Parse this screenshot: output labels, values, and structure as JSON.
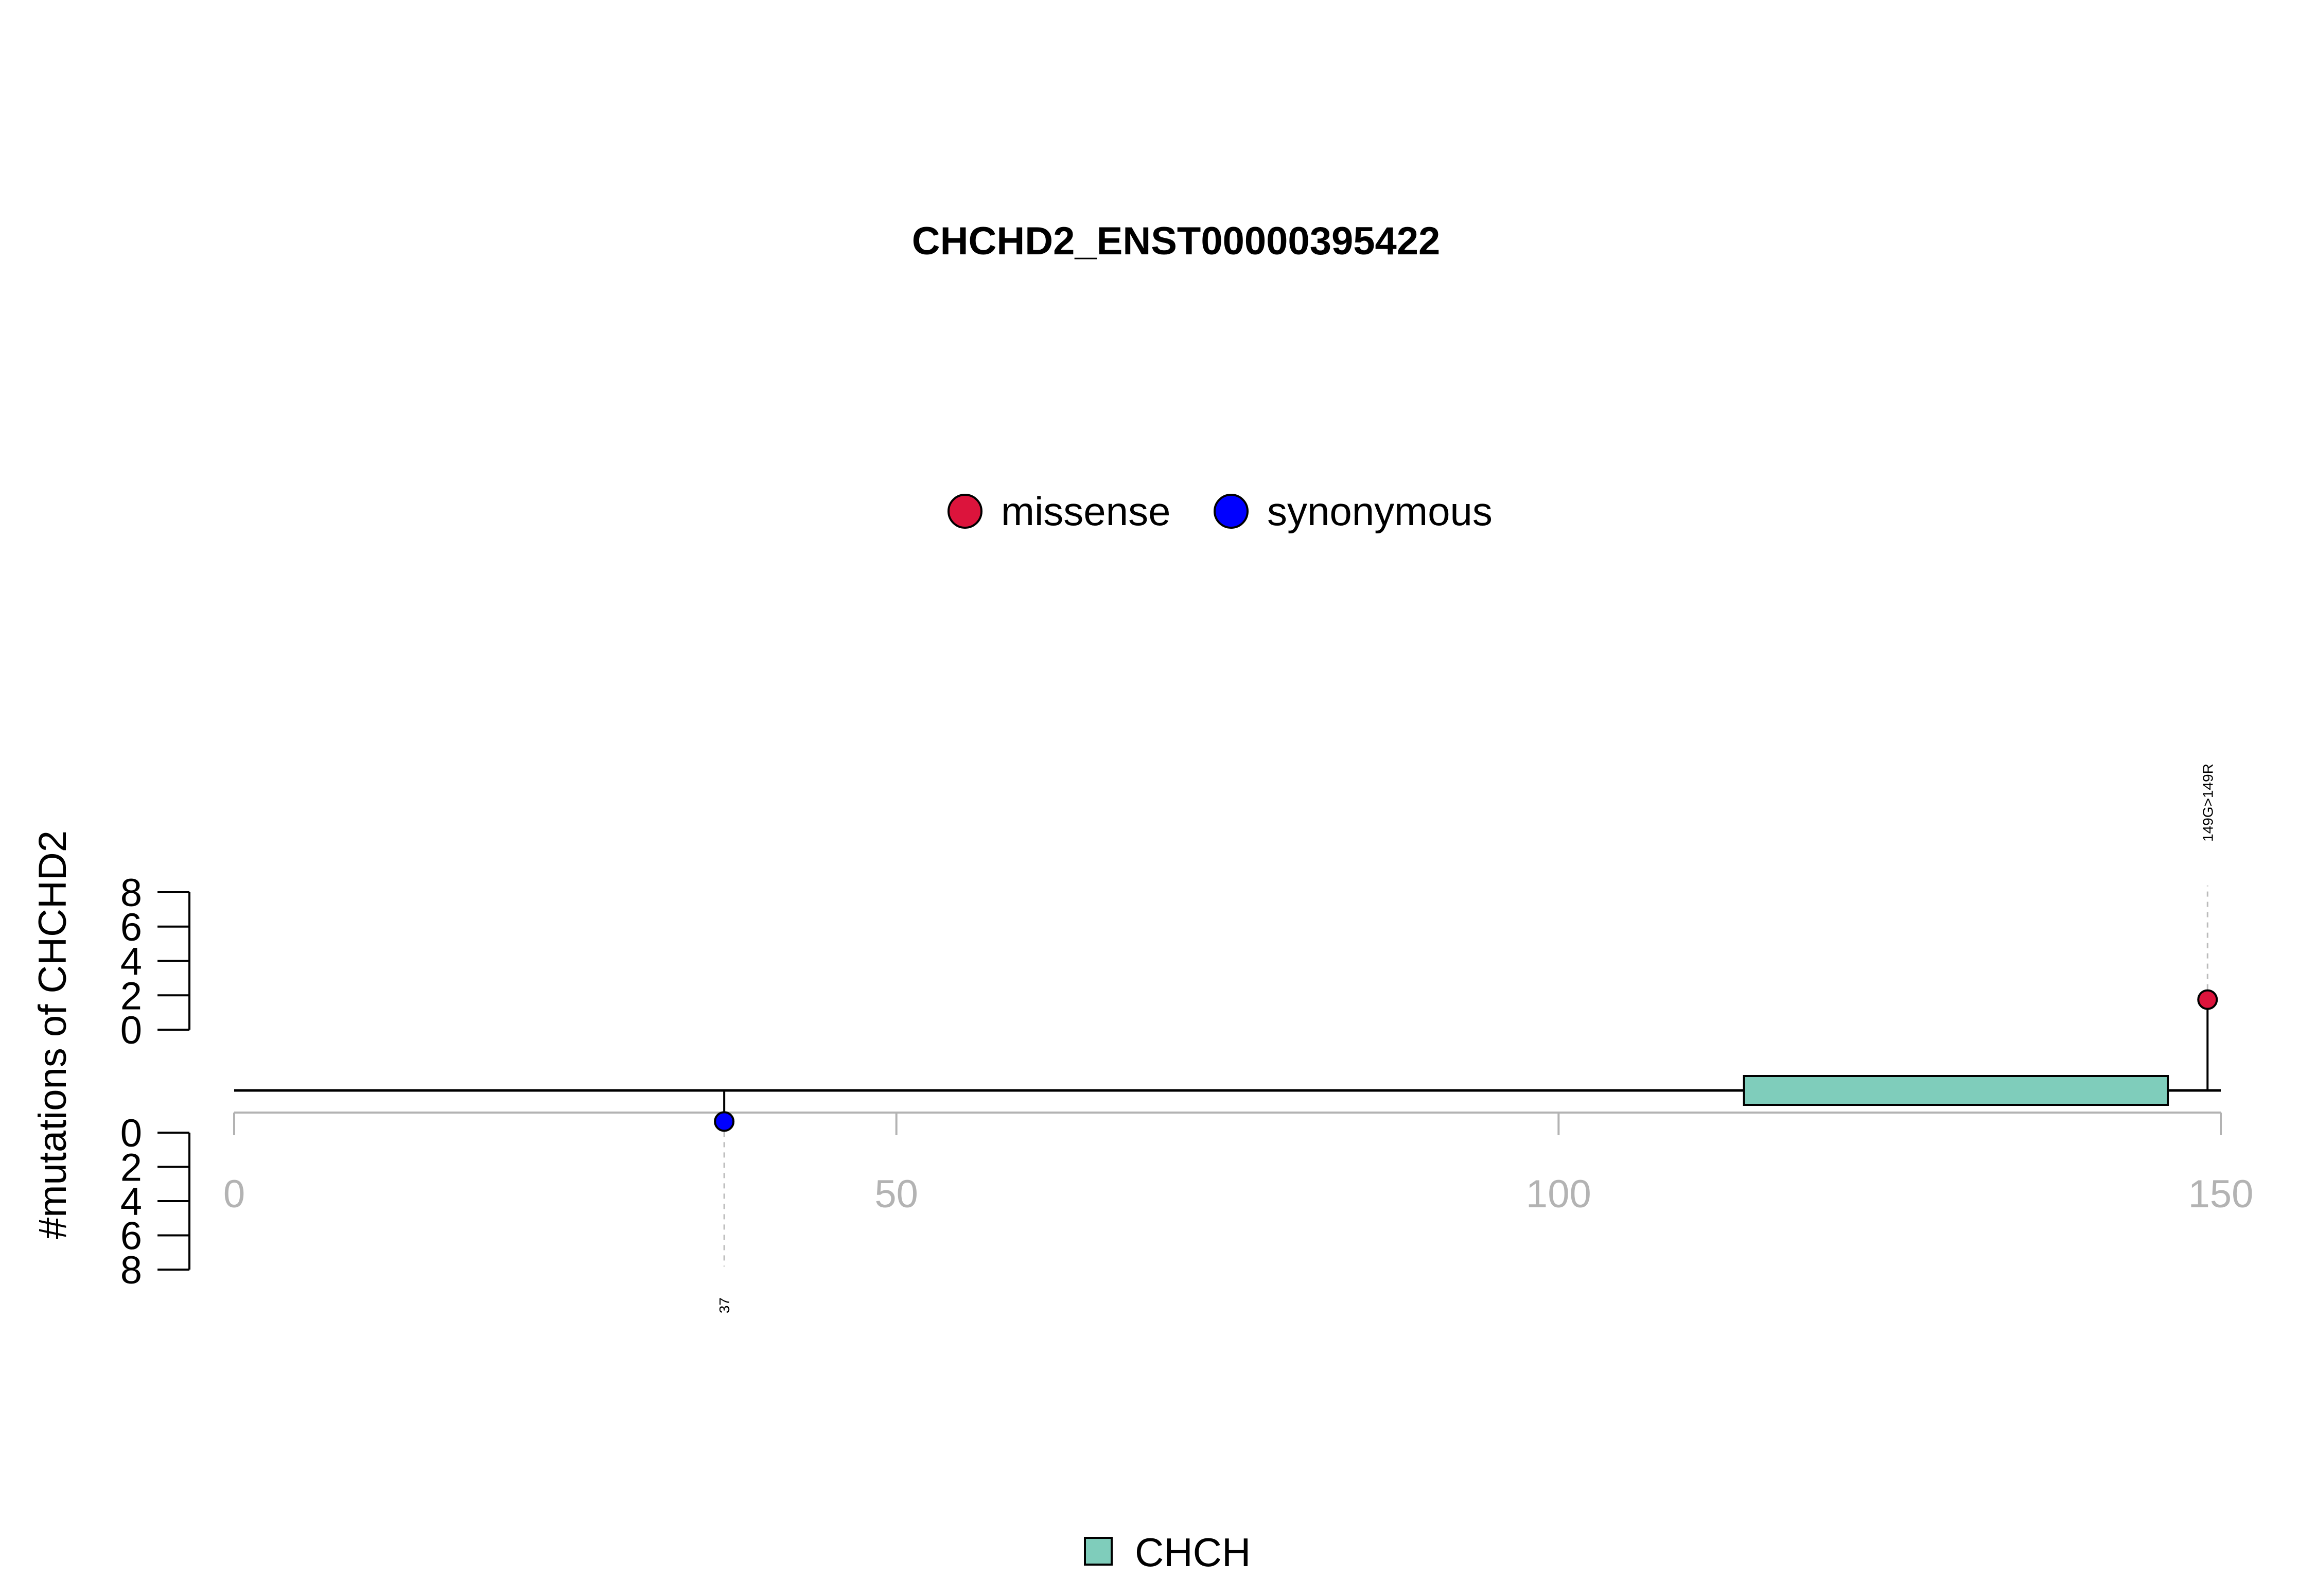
{
  "chart_data": {
    "type": "lollipop",
    "title": "CHCHD2_ENST00000395422",
    "ylabel": "#mutations of CHCHD2",
    "xlim": [
      0,
      150
    ],
    "x_ticks": [
      "0",
      "50",
      "100",
      "150"
    ],
    "y_ticks": [
      "0",
      "2",
      "4",
      "6",
      "8"
    ],
    "ylim": [
      0,
      8
    ],
    "legend": [
      {
        "label": "missense",
        "color": "#dc143c"
      },
      {
        "label": "synonymous",
        "color": "#0000ff"
      }
    ],
    "mutations": [
      {
        "position": 37,
        "count": 1,
        "type": "synonymous",
        "color": "#0000ff",
        "label": "37",
        "side": "bottom"
      },
      {
        "position": 149,
        "count": 1,
        "type": "missense",
        "color": "#dc143c",
        "label": "149G>149R",
        "side": "top"
      }
    ],
    "domains": [
      {
        "name": "CHCH",
        "start": 114,
        "end": 146,
        "color": "#7fcdbb"
      }
    ],
    "domain_legend": {
      "label": "CHCH",
      "color": "#7fcdbb"
    }
  }
}
